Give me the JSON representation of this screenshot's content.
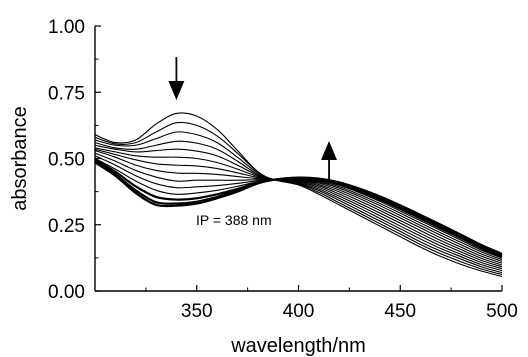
{
  "chart_data": {
    "type": "line",
    "xlabel": "wavelength/nm",
    "ylabel": "absorbance",
    "xlim": [
      300,
      500
    ],
    "ylim": [
      0.0,
      1.0
    ],
    "xticks": [
      350,
      400,
      450,
      500
    ],
    "xtick_labels": [
      "350",
      "400",
      "450",
      "500"
    ],
    "yticks": [
      0.0,
      0.25,
      0.5,
      0.75,
      1.0
    ],
    "ytick_labels": [
      "0.00",
      "0.25",
      "0.50",
      "0.75",
      "1.00"
    ],
    "grid": false,
    "legend": "none",
    "annotations": [
      {
        "text": "IP = 388 nm",
        "x": 388,
        "y": 0.42
      },
      {
        "text": "",
        "marker": "arrow-down",
        "x": 340
      },
      {
        "text": "",
        "marker": "arrow-up",
        "x": 415
      }
    ],
    "x": [
      300,
      310,
      320,
      330,
      340,
      350,
      360,
      370,
      380,
      388,
      400,
      410,
      420,
      430,
      440,
      450,
      460,
      470,
      480,
      490,
      500
    ],
    "series": [
      {
        "values": [
          0.59,
          0.56,
          0.57,
          0.63,
          0.67,
          0.66,
          0.61,
          0.53,
          0.45,
          0.42,
          0.4,
          0.365,
          0.325,
          0.285,
          0.245,
          0.205,
          0.165,
          0.13,
          0.1,
          0.075,
          0.055
        ]
      },
      {
        "values": [
          0.58,
          0.555,
          0.56,
          0.6,
          0.635,
          0.625,
          0.585,
          0.52,
          0.45,
          0.42,
          0.403,
          0.372,
          0.333,
          0.294,
          0.254,
          0.215,
          0.175,
          0.14,
          0.11,
          0.083,
          0.062
        ]
      },
      {
        "values": [
          0.57,
          0.55,
          0.55,
          0.575,
          0.6,
          0.59,
          0.56,
          0.505,
          0.445,
          0.42,
          0.406,
          0.379,
          0.342,
          0.303,
          0.264,
          0.225,
          0.185,
          0.15,
          0.12,
          0.091,
          0.069
        ]
      },
      {
        "values": [
          0.56,
          0.54,
          0.535,
          0.55,
          0.565,
          0.558,
          0.535,
          0.49,
          0.44,
          0.42,
          0.409,
          0.385,
          0.35,
          0.313,
          0.274,
          0.235,
          0.196,
          0.16,
          0.129,
          0.099,
          0.077
        ]
      },
      {
        "values": [
          0.55,
          0.535,
          0.525,
          0.53,
          0.535,
          0.528,
          0.51,
          0.475,
          0.436,
          0.42,
          0.412,
          0.391,
          0.358,
          0.322,
          0.284,
          0.245,
          0.207,
          0.17,
          0.138,
          0.107,
          0.084
        ]
      },
      {
        "values": [
          0.54,
          0.525,
          0.51,
          0.505,
          0.505,
          0.5,
          0.485,
          0.46,
          0.432,
          0.42,
          0.415,
          0.397,
          0.366,
          0.331,
          0.294,
          0.256,
          0.217,
          0.18,
          0.147,
          0.115,
          0.091
        ]
      },
      {
        "values": [
          0.535,
          0.515,
          0.495,
          0.48,
          0.475,
          0.472,
          0.462,
          0.446,
          0.428,
          0.42,
          0.418,
          0.402,
          0.374,
          0.34,
          0.304,
          0.266,
          0.228,
          0.19,
          0.156,
          0.123,
          0.098
        ]
      },
      {
        "values": [
          0.53,
          0.505,
          0.475,
          0.455,
          0.445,
          0.444,
          0.44,
          0.432,
          0.424,
          0.42,
          0.42,
          0.407,
          0.381,
          0.349,
          0.313,
          0.276,
          0.238,
          0.2,
          0.165,
          0.131,
          0.105
        ]
      },
      {
        "values": [
          0.52,
          0.49,
          0.455,
          0.43,
          0.415,
          0.418,
          0.418,
          0.418,
          0.42,
          0.42,
          0.422,
          0.411,
          0.388,
          0.357,
          0.322,
          0.285,
          0.247,
          0.21,
          0.174,
          0.139,
          0.112
        ]
      },
      {
        "values": [
          0.51,
          0.475,
          0.435,
          0.405,
          0.39,
          0.393,
          0.398,
          0.406,
          0.416,
          0.42,
          0.424,
          0.415,
          0.394,
          0.364,
          0.33,
          0.294,
          0.256,
          0.219,
          0.183,
          0.147,
          0.118
        ]
      },
      {
        "values": [
          0.5,
          0.46,
          0.415,
          0.38,
          0.365,
          0.37,
          0.38,
          0.395,
          0.412,
          0.42,
          0.425,
          0.418,
          0.399,
          0.371,
          0.338,
          0.302,
          0.265,
          0.228,
          0.191,
          0.154,
          0.124
        ]
      },
      {
        "values": [
          0.495,
          0.45,
          0.395,
          0.355,
          0.345,
          0.35,
          0.365,
          0.385,
          0.409,
          0.42,
          0.426,
          0.42,
          0.403,
          0.377,
          0.345,
          0.31,
          0.273,
          0.236,
          0.199,
          0.161,
          0.13
        ]
      },
      {
        "values": [
          0.49,
          0.44,
          0.38,
          0.335,
          0.33,
          0.337,
          0.355,
          0.379,
          0.407,
          0.42,
          0.427,
          0.422,
          0.407,
          0.382,
          0.352,
          0.317,
          0.281,
          0.244,
          0.206,
          0.168,
          0.135
        ]
      },
      {
        "values": [
          0.485,
          0.435,
          0.37,
          0.325,
          0.322,
          0.33,
          0.35,
          0.375,
          0.406,
          0.42,
          0.428,
          0.424,
          0.41,
          0.386,
          0.357,
          0.323,
          0.287,
          0.25,
          0.212,
          0.173,
          0.14
        ]
      }
    ]
  }
}
